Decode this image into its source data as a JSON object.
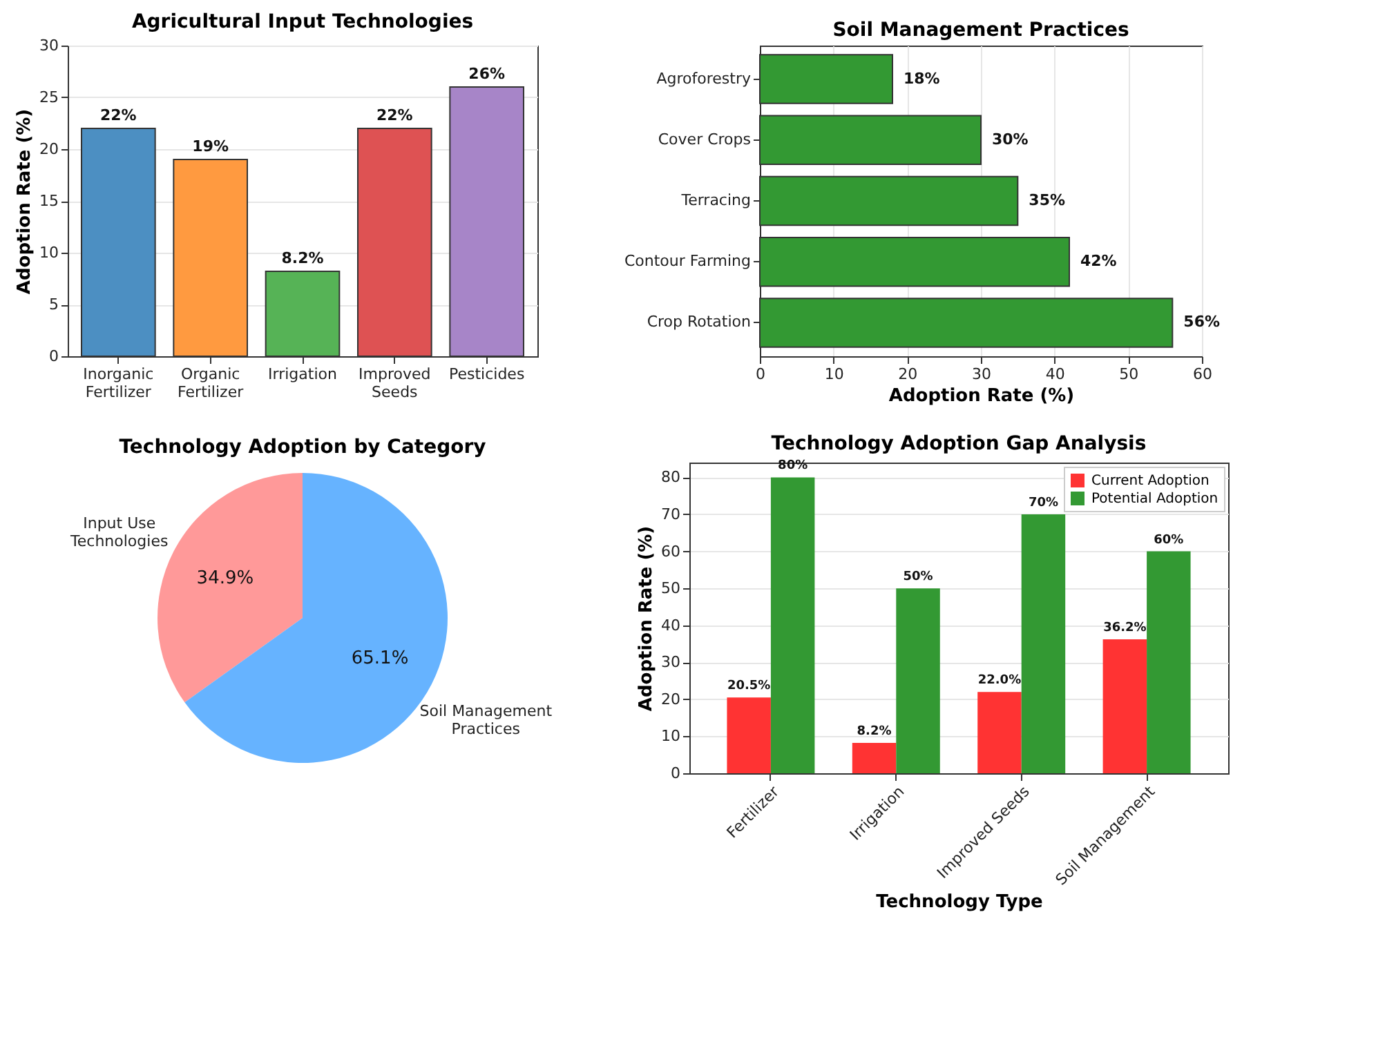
{
  "chart_data": [
    {
      "type": "bar",
      "title": "Agricultural Input Technologies",
      "ylabel": "Adoption Rate (%)",
      "categories": [
        "Inorganic Fertilizer",
        "Organic Fertilizer",
        "Irrigation",
        "Improved Seeds",
        "Pesticides"
      ],
      "values": [
        22,
        19,
        8.2,
        22,
        26
      ],
      "colors": [
        "#4c8fc2",
        "#ff9a40",
        "#56b356",
        "#de5253",
        "#a785c8"
      ],
      "value_labels": [
        "22%",
        "19%",
        "8.2%",
        "22%",
        "26%"
      ],
      "ylim": [
        0,
        30
      ],
      "yticks": [
        0,
        5,
        10,
        15,
        20,
        25,
        30
      ],
      "grid": "y"
    },
    {
      "type": "bar",
      "orientation": "horizontal",
      "title": "Soil Management Practices",
      "xlabel": "Adoption Rate (%)",
      "categories": [
        "Agroforestry",
        "Cover Crops",
        "Terracing",
        "Contour Farming",
        "Crop Rotation"
      ],
      "values": [
        18,
        30,
        35,
        42,
        56
      ],
      "colors": [
        "#339933",
        "#339933",
        "#339933",
        "#339933",
        "#339933"
      ],
      "value_labels": [
        "18%",
        "30%",
        "35%",
        "42%",
        "56%"
      ],
      "xlim": [
        0,
        60
      ],
      "xticks": [
        0,
        10,
        20,
        30,
        40,
        50,
        60
      ],
      "grid": "x"
    },
    {
      "type": "pie",
      "title": "Technology Adoption by Category",
      "categories": [
        "Input Use Technologies",
        "Soil Management Practices"
      ],
      "values": [
        34.9,
        65.1
      ],
      "colors": [
        "#ff9999",
        "#66b3ff"
      ],
      "value_labels": [
        "34.9%",
        "65.1%"
      ]
    },
    {
      "type": "bar",
      "title": "Technology Adoption Gap Analysis",
      "xlabel": "Technology Type",
      "ylabel": "Adoption Rate (%)",
      "categories": [
        "Fertilizer",
        "Irrigation",
        "Improved Seeds",
        "Soil Management"
      ],
      "series": [
        {
          "name": "Current Adoption",
          "color": "#ff3333",
          "values": [
            20.5,
            8.2,
            22.0,
            36.2
          ],
          "value_labels": [
            "20.5%",
            "8.2%",
            "22.0%",
            "36.2%"
          ]
        },
        {
          "name": "Potential Adoption",
          "color": "#339933",
          "values": [
            80,
            50,
            70,
            60
          ],
          "value_labels": [
            "80%",
            "50%",
            "70%",
            "60%"
          ]
        }
      ],
      "ylim": [
        0,
        84
      ],
      "yticks": [
        0,
        10,
        20,
        30,
        40,
        50,
        60,
        70,
        80
      ],
      "grid": "y",
      "legend": "top right"
    }
  ]
}
